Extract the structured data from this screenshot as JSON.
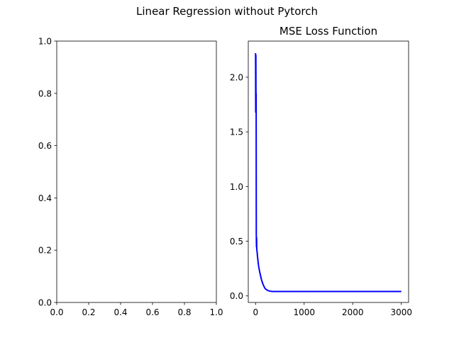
{
  "figure": {
    "suptitle": "Linear Regression without Pytorch"
  },
  "chart_data": [
    {
      "type": "scatter",
      "title": "",
      "xlabel": "",
      "ylabel": "",
      "xlim": [
        0.0,
        1.0
      ],
      "ylim": [
        0.0,
        1.0
      ],
      "xticks": [
        0.0,
        0.2,
        0.4,
        0.6,
        0.8,
        1.0
      ],
      "xtick_labels": [
        "0.0",
        "0.2",
        "0.4",
        "0.6",
        "0.8",
        "1.0"
      ],
      "yticks": [
        0.0,
        0.2,
        0.4,
        0.6,
        0.8,
        1.0
      ],
      "ytick_labels": [
        "0.0",
        "0.2",
        "0.4",
        "0.6",
        "0.8",
        "1.0"
      ],
      "grid": false,
      "series": []
    },
    {
      "type": "line",
      "title": "MSE Loss Function",
      "xlabel": "",
      "ylabel": "",
      "xlim": [
        -150,
        3150
      ],
      "ylim": [
        -0.06,
        2.33
      ],
      "xticks": [
        0,
        1000,
        2000,
        3000
      ],
      "xtick_labels": [
        "0",
        "1000",
        "2000",
        "3000"
      ],
      "yticks": [
        0.0,
        0.5,
        1.0,
        1.5,
        2.0
      ],
      "ytick_labels": [
        "0.0",
        "0.5",
        "1.0",
        "1.5",
        "2.0"
      ],
      "grid": false,
      "color": "#0000ff",
      "series": [
        {
          "x": [
            0,
            3,
            6,
            9,
            12,
            15,
            18,
            21,
            24,
            30,
            40,
            50,
            60,
            80,
            100,
            120,
            150,
            180,
            200,
            250,
            300,
            350,
            400,
            500,
            700,
            1000,
            1500,
            2000,
            2500,
            3000
          ],
          "values": [
            2.22,
            1.68,
            2.2,
            1.69,
            1.85,
            0.56,
            0.45,
            0.53,
            0.43,
            0.41,
            0.36,
            0.32,
            0.28,
            0.23,
            0.19,
            0.15,
            0.11,
            0.08,
            0.065,
            0.05,
            0.043,
            0.04,
            0.04,
            0.04,
            0.04,
            0.04,
            0.04,
            0.04,
            0.04,
            0.04
          ]
        }
      ]
    }
  ]
}
